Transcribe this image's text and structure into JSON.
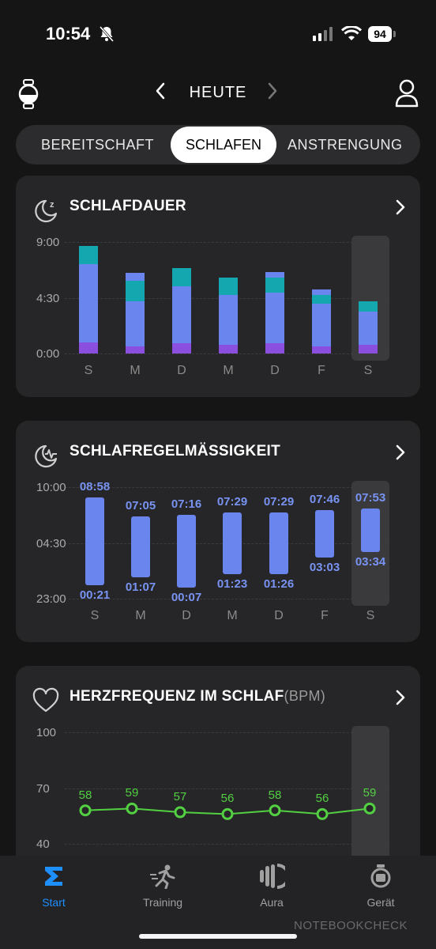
{
  "status_bar": {
    "time": "10:54",
    "battery": "94"
  },
  "top_nav": {
    "title": "HEUTE"
  },
  "tabs": [
    "BEREITSCHAFT",
    "SCHLAFEN",
    "ANSTRENGUNG"
  ],
  "cards": {
    "sleep_duration": {
      "title": "SCHLAFDAUER"
    },
    "sleep_regularity": {
      "title": "SCHLAFREGELMÄSSIGKEIT"
    },
    "heart_rate": {
      "title": "HERZFREQUENZ IM SCHLAF",
      "unit": "(BPM)"
    }
  },
  "tab_bar": {
    "items": [
      "Start",
      "Training",
      "Aura",
      "Gerät"
    ]
  },
  "watermark": "NOTEBOOKCHECK",
  "colors": {
    "deep": "#8b4fe0",
    "light": "#6b85ee",
    "rem": "#14a7b0",
    "awake": "#6b85ee",
    "hr": "#52d042",
    "accent": "#1e8fff"
  },
  "chart_data": [
    {
      "type": "bar",
      "title": "SCHLAFDAUER",
      "categories": [
        "S",
        "M",
        "D",
        "M",
        "D",
        "F",
        "S"
      ],
      "y_ticks": [
        "9:00",
        "4:30",
        "0:00"
      ],
      "ylim": [
        0,
        9
      ],
      "series": [
        {
          "values": [
            0.9,
            0.6,
            0.8,
            0.7,
            0.8,
            0.6,
            0.7
          ]
        },
        {
          "values": [
            6.3,
            3.6,
            4.6,
            4.0,
            4.1,
            3.4,
            2.7
          ]
        },
        {
          "values": [
            1.5,
            1.7,
            1.5,
            1.4,
            1.2,
            0.7,
            0.8
          ]
        },
        {
          "values": [
            0,
            0.6,
            0,
            0,
            0.5,
            0.5,
            0
          ]
        }
      ]
    },
    {
      "type": "bar",
      "title": "SCHLAFREGELMÄSSIGKEIT",
      "categories": [
        "S",
        "M",
        "D",
        "M",
        "D",
        "F",
        "S"
      ],
      "y_ticks": [
        "10:00",
        "04:30",
        "23:00"
      ],
      "ylim": [
        0,
        11
      ],
      "start": [
        "00:21",
        "01:07",
        "00:07",
        "01:23",
        "01:26",
        "03:03",
        "03:34"
      ],
      "end": [
        "08:58",
        "07:05",
        "07:16",
        "07:29",
        "07:29",
        "07:46",
        "07:53"
      ],
      "start_hours": [
        1.35,
        2.12,
        1.12,
        2.38,
        2.43,
        4.05,
        4.57
      ],
      "end_hours": [
        9.97,
        8.08,
        8.27,
        8.48,
        8.48,
        8.77,
        8.88
      ]
    },
    {
      "type": "line",
      "title": "HERZFREQUENZ IM SCHLAF",
      "ylabel": "(BPM)",
      "categories": [
        "S",
        "M",
        "D",
        "M",
        "D",
        "F",
        "S"
      ],
      "y_ticks": [
        "100",
        "70",
        "40"
      ],
      "ylim": [
        40,
        100
      ],
      "values": [
        58,
        59,
        57,
        56,
        58,
        56,
        59
      ]
    }
  ]
}
